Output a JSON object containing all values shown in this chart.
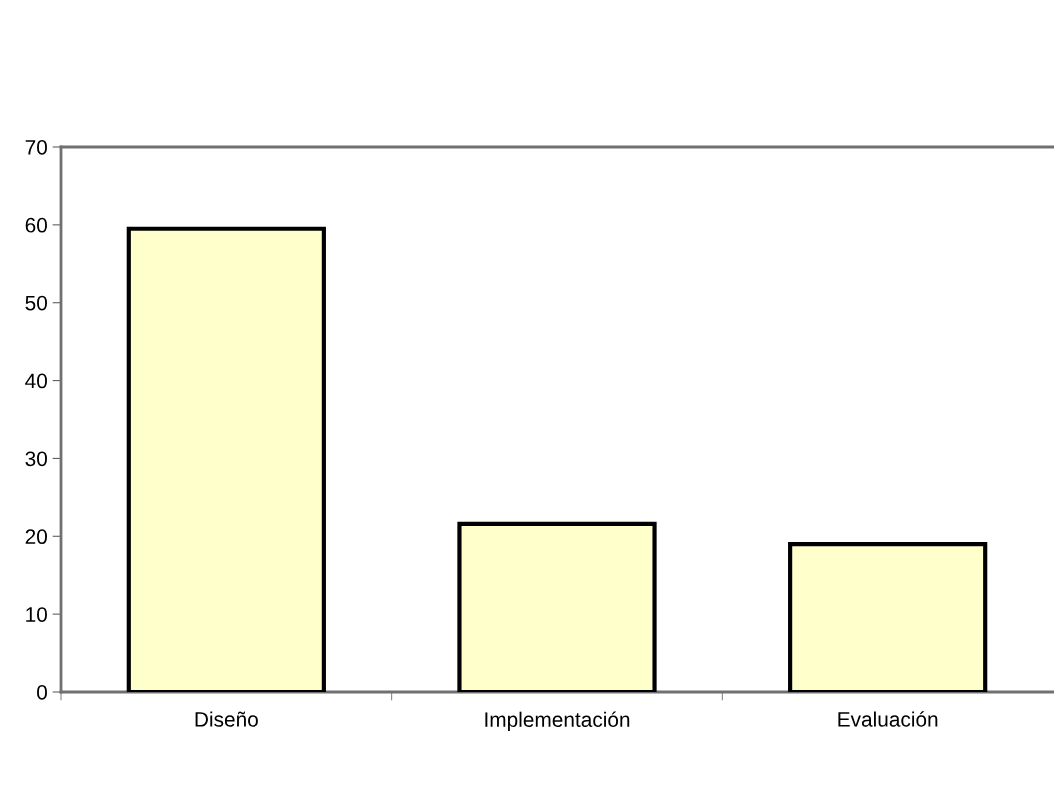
{
  "chart_data": {
    "type": "bar",
    "categories": [
      "Diseño",
      "Implementación",
      "Evaluación"
    ],
    "values": [
      59.5,
      21.6,
      19.0
    ],
    "color": "#ffffcc",
    "ylim": [
      0,
      70
    ],
    "yticks": [
      0,
      10,
      20,
      30,
      40,
      50,
      60,
      70
    ],
    "grid": false
  }
}
